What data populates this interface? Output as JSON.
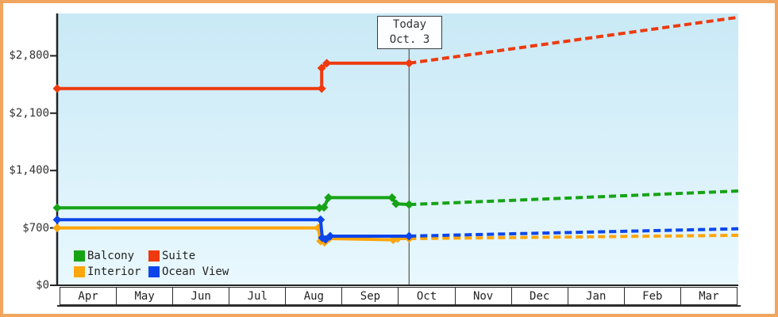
{
  "legend": {
    "items": [
      {
        "label": "Balcony",
        "color": "#16a316"
      },
      {
        "label": "Suite",
        "color": "#ee3a0e"
      },
      {
        "label": "Interior",
        "color": "#ffa60a"
      },
      {
        "label": "Ocean View",
        "color": "#0c46ea"
      }
    ]
  },
  "chart_data": {
    "type": "line",
    "x_axis": {
      "months": [
        "Apr",
        "May",
        "Jun",
        "Jul",
        "Aug",
        "Sep",
        "Oct",
        "Nov",
        "Dec",
        "Jan",
        "Feb",
        "Mar"
      ],
      "today_label": "Today",
      "today_date": "Oct. 3",
      "today_month_offset": 6.2
    },
    "y_axis": {
      "unit": "USD",
      "tick_labels": [
        "$2,800",
        "$2,100",
        "$1,400",
        "$700",
        "$0"
      ],
      "tick_values": [
        2800,
        2100,
        1400,
        700,
        0
      ],
      "range": [
        0,
        3400
      ]
    },
    "projection_style": "dashed",
    "legend_position": "bottom-left",
    "series": [
      {
        "name": "Suite",
        "color": "#ee3a0e",
        "solid_points": [
          [
            0,
            2400
          ],
          [
            4.66,
            2400
          ],
          [
            4.66,
            2650
          ],
          [
            4.75,
            2710
          ],
          [
            6.2,
            2710
          ]
        ],
        "projected_points": [
          [
            6.2,
            2710
          ],
          [
            12,
            3270
          ]
        ]
      },
      {
        "name": "Balcony",
        "color": "#16a316",
        "solid_points": [
          [
            0,
            945
          ],
          [
            4.62,
            945
          ],
          [
            4.7,
            950
          ],
          [
            4.78,
            1070
          ],
          [
            5.9,
            1070
          ],
          [
            5.97,
            995
          ],
          [
            6.2,
            985
          ]
        ],
        "projected_points": [
          [
            6.2,
            985
          ],
          [
            12,
            1150
          ]
        ]
      },
      {
        "name": "Interior",
        "color": "#ffa60a",
        "solid_points": [
          [
            0,
            700
          ],
          [
            4.6,
            700
          ],
          [
            4.64,
            540
          ],
          [
            4.71,
            525
          ],
          [
            4.79,
            570
          ],
          [
            5.92,
            555
          ],
          [
            6.0,
            570
          ],
          [
            6.2,
            570
          ]
        ],
        "projected_points": [
          [
            6.2,
            570
          ],
          [
            12,
            610
          ]
        ]
      },
      {
        "name": "Ocean View",
        "color": "#0c46ea",
        "solid_points": [
          [
            0,
            800
          ],
          [
            4.64,
            800
          ],
          [
            4.67,
            580
          ],
          [
            4.73,
            560
          ],
          [
            4.81,
            600
          ],
          [
            6.2,
            600
          ]
        ],
        "projected_points": [
          [
            6.2,
            600
          ],
          [
            12,
            690
          ]
        ]
      }
    ]
  }
}
